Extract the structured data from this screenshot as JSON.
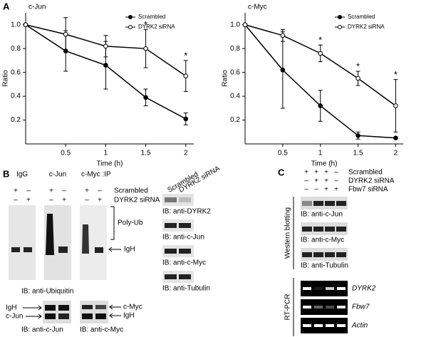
{
  "chart_data": [
    {
      "type": "line",
      "label": "A",
      "title": "c-Jun",
      "x": [
        0,
        0.5,
        1,
        1.5,
        2
      ],
      "xlim": [
        0,
        2.1
      ],
      "xticks": [
        0.5,
        1,
        1.5,
        2
      ],
      "ylim": [
        0,
        1.1
      ],
      "yticks": [
        0.2,
        0.4,
        0.6,
        0.8,
        {
          "value": 1,
          "label": "1.0"
        }
      ],
      "x_label": "Time (h)",
      "y_label": "Ratio",
      "legend": "upper right",
      "series": [
        {
          "name": "Scrambled",
          "color": "#000000",
          "marker": "filled",
          "values": [
            1.0,
            0.78,
            0.66,
            0.39,
            0.21
          ],
          "errors": [
            0,
            0.17,
            0.2,
            0.07,
            0.05
          ]
        },
        {
          "name": "DYRK2 siRNA",
          "color": "#000000",
          "marker": "open",
          "values": [
            1.0,
            0.92,
            0.82,
            0.8,
            0.57
          ],
          "errors": [
            0,
            0.14,
            0.09,
            0.16,
            0.13
          ]
        }
      ],
      "annotations": [
        {
          "text": "*",
          "x": 1.5
        },
        {
          "text": "*",
          "x": 2
        }
      ]
    },
    {
      "type": "line",
      "title": "c-Myc",
      "x": [
        0,
        0.5,
        1,
        1.5,
        2
      ],
      "xlim": [
        0,
        2.1
      ],
      "xticks": [
        0.5,
        1,
        1.5,
        2
      ],
      "ylim": [
        0,
        1.1
      ],
      "yticks": [
        0.2,
        0.4,
        0.6,
        0.8,
        {
          "value": 1,
          "label": "1.0"
        }
      ],
      "x_label": "Time (h)",
      "y_label": "Ratio",
      "legend": "upper right",
      "series": [
        {
          "name": "Scrambled",
          "color": "#000000",
          "marker": "filled",
          "values": [
            1.0,
            0.62,
            0.32,
            0.07,
            0.05
          ],
          "errors": [
            0,
            0.32,
            0.13,
            0.03,
            0
          ]
        },
        {
          "name": "DYRK2 siRNA",
          "color": "#000000",
          "marker": "open",
          "values": [
            1.0,
            0.91,
            0.76,
            0.55,
            0.32
          ],
          "errors": [
            0,
            0.05,
            0.07,
            0.06,
            0.22
          ]
        }
      ],
      "annotations": [
        {
          "text": "*",
          "x": 1
        },
        {
          "text": "*",
          "x": 1.5
        },
        {
          "text": "*",
          "x": 2
        }
      ]
    }
  ],
  "panel_b": {
    "label": "B",
    "ip_groups": [
      "IgG",
      "c-Jun",
      "c-Myc :IP"
    ],
    "signs": [
      [
        "+",
        "–"
      ],
      [
        "–",
        "+"
      ]
    ],
    "row_labels": [
      "Scrambled",
      "DYRK2 siRNA"
    ],
    "poly_ub": "Poly-Ub",
    "igh": "IgH",
    "ub_label": "IB: anti-Ubiquitin",
    "jun_left": [
      "IgH",
      "c-Jun"
    ],
    "jun_label": "IB: anti-c-Jun",
    "myc_right": [
      "c-Myc",
      "IgH"
    ],
    "myc_label": "IB: anti-c-Myc"
  },
  "lysate": {
    "columns": [
      "Scrambled",
      "DYRK2 siRNA"
    ],
    "blots": [
      "IB: anti-DYRK2",
      "IB: anti-c-Jun",
      "IB: anti-c-Myc",
      "IB: anti-Tubulin"
    ]
  },
  "panel_c": {
    "label": "C",
    "signs": [
      [
        "+",
        "+",
        "+",
        "–"
      ],
      [
        "–",
        "+",
        "+",
        "–"
      ],
      [
        "–",
        "–",
        "+",
        "+"
      ]
    ],
    "row_labels": [
      "Scrambled",
      "DYRK2 siRNA",
      "Fbw7 siRNA"
    ],
    "western": "Western blotting",
    "wb_blots": [
      "IB: anti-c-Jun",
      "IB: anti-c-Myc",
      "IB: anti-Tubulin"
    ],
    "rtpcr": "RT-PCR",
    "pcr_genes": [
      "DYRK2",
      "Fbw7",
      "Actin"
    ]
  }
}
